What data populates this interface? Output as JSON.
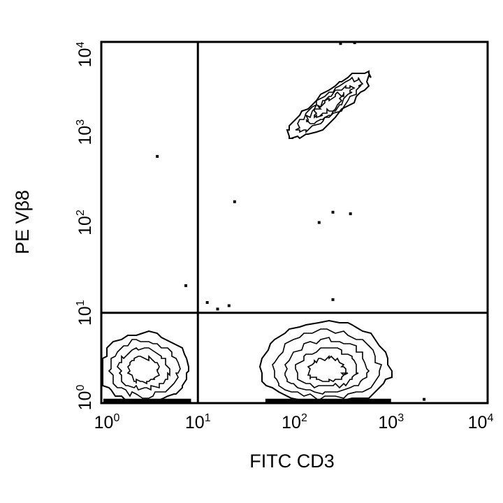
{
  "chart_data": {
    "type": "contour",
    "xlabel": "FITC CD3",
    "ylabel": "PE Vβ8",
    "x_scale": "log",
    "y_scale": "log",
    "xlim": [
      1,
      10000
    ],
    "ylim": [
      1,
      10000
    ],
    "x_ticks": [
      {
        "base": "10",
        "exp": "0"
      },
      {
        "base": "10",
        "exp": "1"
      },
      {
        "base": "10",
        "exp": "2"
      },
      {
        "base": "10",
        "exp": "3"
      },
      {
        "base": "10",
        "exp": "4"
      }
    ],
    "y_ticks": [
      {
        "base": "10",
        "exp": "0"
      },
      {
        "base": "10",
        "exp": "1"
      },
      {
        "base": "10",
        "exp": "2"
      },
      {
        "base": "10",
        "exp": "3"
      },
      {
        "base": "10",
        "exp": "4"
      }
    ],
    "quadrant_gates": {
      "x": 10,
      "y": 10
    },
    "populations": [
      {
        "id": "cd3-neg-vb8-neg",
        "x_range": [
          1,
          8
        ],
        "y_range": [
          1,
          6
        ],
        "center": [
          2.7,
          2.3
        ],
        "levels": 4
      },
      {
        "id": "cd3-pos-vb8-neg",
        "x_range": [
          45,
          1000
        ],
        "y_range": [
          1,
          8
        ],
        "center": [
          220,
          2.2
        ],
        "levels": 5
      },
      {
        "id": "cd3-pos-vb8-pos",
        "x_range": [
          60,
          550
        ],
        "y_range": [
          650,
          5500
        ],
        "center": [
          230,
          2000
        ],
        "levels": 4
      }
    ],
    "outlier_events": [
      {
        "x": 3.8,
        "y": 540
      },
      {
        "x": 7.5,
        "y": 20
      },
      {
        "x": 24,
        "y": 170
      },
      {
        "x": 180,
        "y": 100
      },
      {
        "x": 250,
        "y": 130
      },
      {
        "x": 380,
        "y": 125
      },
      {
        "x": 250,
        "y": 14
      },
      {
        "x": 12.5,
        "y": 13
      },
      {
        "x": 16,
        "y": 11
      },
      {
        "x": 21,
        "y": 12
      },
      {
        "x": 300,
        "y": 9600
      },
      {
        "x": 420,
        "y": 9800
      },
      {
        "x": 2200,
        "y": 1.1
      }
    ],
    "grid": false,
    "legend": "none"
  }
}
